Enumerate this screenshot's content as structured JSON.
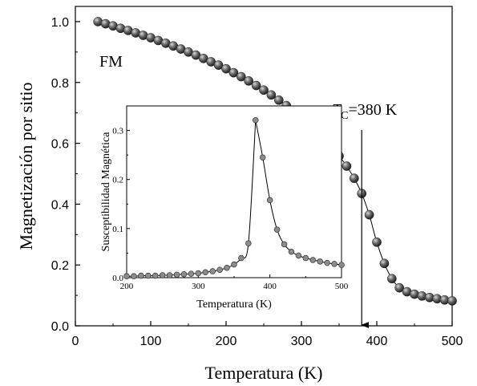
{
  "chart_data": [
    {
      "type": "scatter",
      "xlabel": "Temperatura (K)",
      "ylabel": "Magnetización por sitio",
      "xlim": [
        0,
        500
      ],
      "ylim": [
        0,
        1.05
      ],
      "xticks": [
        "0",
        "100",
        "200",
        "300",
        "400",
        "500"
      ],
      "yticks": [
        "0.0",
        "0.2",
        "0.4",
        "0.6",
        "0.8",
        "1.0"
      ],
      "grid": false,
      "annotations": {
        "phase_label": "FM",
        "tc_symbol": "T",
        "tc_subscript": "C",
        "tc_value": "=380 K",
        "tc_arrow_x": 380
      },
      "series": [
        {
          "marker": "sphere",
          "x": [
            30,
            40,
            50,
            60,
            70,
            80,
            90,
            100,
            110,
            120,
            130,
            140,
            150,
            160,
            170,
            180,
            190,
            200,
            210,
            220,
            230,
            240,
            250,
            260,
            270,
            280,
            290,
            300,
            310,
            320,
            330,
            340,
            350,
            360,
            370,
            380,
            390,
            400,
            410,
            420,
            430,
            440,
            450,
            460,
            470,
            480,
            490,
            500
          ],
          "y": [
            1.0,
            0.993,
            0.986,
            0.978,
            0.971,
            0.963,
            0.955,
            0.947,
            0.938,
            0.929,
            0.92,
            0.91,
            0.9,
            0.89,
            0.879,
            0.868,
            0.857,
            0.845,
            0.832,
            0.819,
            0.805,
            0.79,
            0.775,
            0.759,
            0.742,
            0.724,
            0.705,
            0.685,
            0.663,
            0.64,
            0.615,
            0.588,
            0.558,
            0.525,
            0.485,
            0.435,
            0.365,
            0.275,
            0.205,
            0.155,
            0.125,
            0.112,
            0.104,
            0.098,
            0.093,
            0.089,
            0.085,
            0.082
          ],
          "curve": true
        }
      ]
    },
    {
      "type": "scatter",
      "inset": true,
      "xlabel": "Temperatura (K)",
      "ylabel": "Susceptibilidad Magnética",
      "xlim": [
        200,
        500
      ],
      "ylim": [
        0,
        0.35
      ],
      "xticks": [
        "200",
        "300",
        "400",
        "500"
      ],
      "yticks": [
        "0.0",
        "0.1",
        "0.2",
        "0.3"
      ],
      "series": [
        {
          "marker": "circle",
          "x": [
            200,
            210,
            220,
            230,
            240,
            250,
            260,
            270,
            280,
            290,
            300,
            310,
            320,
            330,
            340,
            350,
            360,
            370,
            380,
            390,
            400,
            410,
            420,
            430,
            440,
            450,
            460,
            470,
            480,
            490,
            500
          ],
          "y": [
            0.003,
            0.003,
            0.004,
            0.004,
            0.004,
            0.005,
            0.005,
            0.006,
            0.007,
            0.008,
            0.009,
            0.011,
            0.013,
            0.016,
            0.02,
            0.027,
            0.04,
            0.07,
            0.321,
            0.245,
            0.158,
            0.098,
            0.068,
            0.053,
            0.045,
            0.04,
            0.036,
            0.033,
            0.03,
            0.028,
            0.026
          ],
          "curve": true
        }
      ]
    }
  ]
}
